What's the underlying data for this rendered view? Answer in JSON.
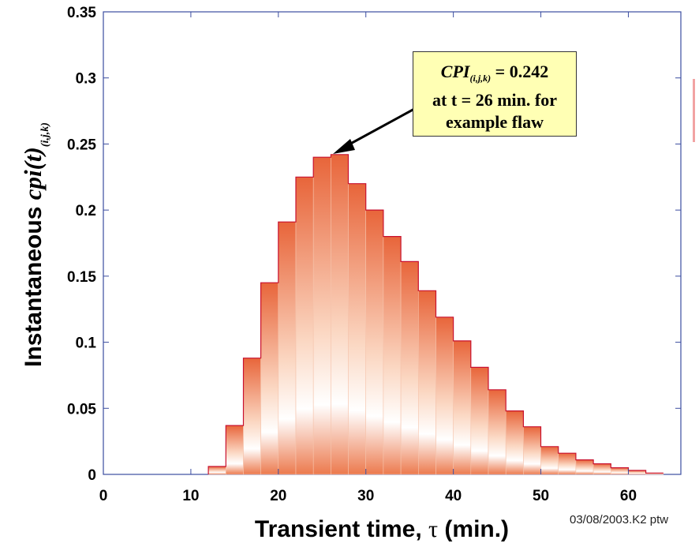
{
  "chart_data": {
    "type": "bar",
    "x_bin_start": [
      12,
      14,
      16,
      18,
      20,
      22,
      24,
      26,
      28,
      30,
      32,
      34,
      36,
      38,
      40,
      42,
      44,
      46,
      48,
      50,
      52,
      54,
      56,
      58,
      60,
      62
    ],
    "bin_width": 2,
    "values": [
      0.006,
      0.037,
      0.088,
      0.145,
      0.191,
      0.225,
      0.24,
      0.242,
      0.22,
      0.2,
      0.18,
      0.161,
      0.139,
      0.119,
      0.101,
      0.081,
      0.064,
      0.048,
      0.036,
      0.021,
      0.016,
      0.011,
      0.008,
      0.005,
      0.003,
      0.001
    ],
    "xlim": [
      0,
      66
    ],
    "ylim": [
      0,
      0.35
    ],
    "x_ticks": [
      "0",
      "10",
      "20",
      "30",
      "40",
      "50",
      "60"
    ],
    "y_ticks": [
      "0",
      "0.05",
      "0.1",
      "0.15",
      "0.2",
      "0.25",
      "0.3",
      "0.35"
    ],
    "ylabel_main": "Instantaneous ",
    "ylabel_math": "cpi(t)",
    "ylabel_sub": "(i,j,k)",
    "xlabel_main": "Transient time, ",
    "xlabel_tau": "τ",
    "xlabel_unit": " (min.)",
    "annotation": {
      "symbol": "CPI",
      "subscript": "(i,j,k)",
      "value_text": " = 0.242",
      "line2": "at t = 26 min. for",
      "line3": "example flaw",
      "target_x": 26,
      "target_y": 0.242
    },
    "bar_color": "#e8653a",
    "grid": false
  },
  "stamp": "03/08/2003.K2 ptw"
}
